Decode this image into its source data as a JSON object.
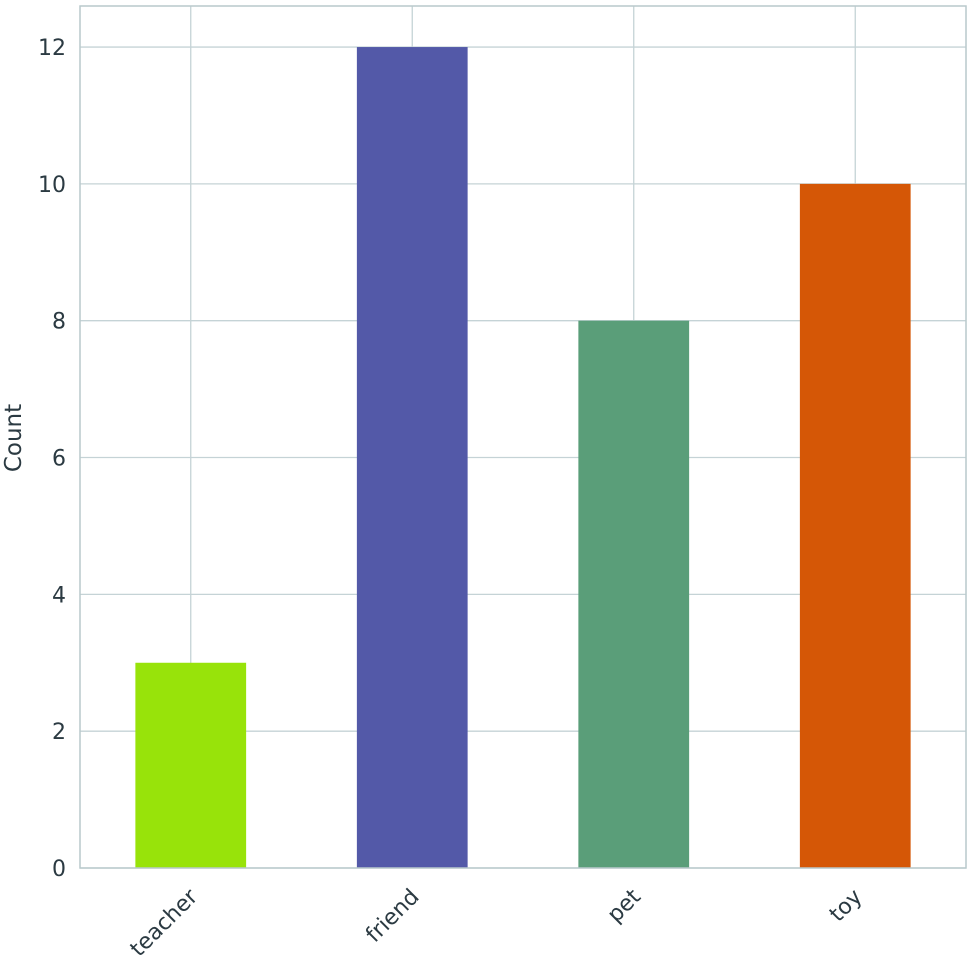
{
  "chart_data": {
    "type": "bar",
    "title": "",
    "xlabel": "",
    "ylabel": "Count",
    "categories": [
      "teacher",
      "friend",
      "pet",
      "toy"
    ],
    "values": [
      3,
      12,
      8,
      10
    ],
    "colors": [
      "#98e30a",
      "#5359a8",
      "#5a9e79",
      "#d55706"
    ],
    "ylim": [
      0,
      12.6
    ],
    "yticks": [
      "0",
      "2",
      "4",
      "6",
      "8",
      "10",
      "12"
    ],
    "grid": true,
    "gridColor": "#c5d3d6",
    "axisColor": "#b9c9cc",
    "textColor": "#2b3a42",
    "xtickRotation": -45,
    "legend": "none"
  }
}
